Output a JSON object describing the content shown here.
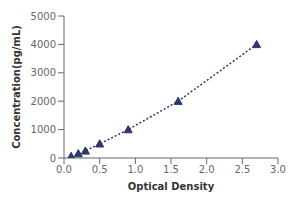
{
  "chart_data": {
    "type": "line",
    "xlabel": "Optical Density",
    "ylabel": "Concentration(pg/mL)",
    "x": [
      0.1,
      0.2,
      0.3,
      0.5,
      0.9,
      1.6,
      2.7
    ],
    "values": [
      62,
      156,
      250,
      500,
      1000,
      2000,
      4000
    ],
    "color": "#2b3a6b",
    "marker": "triangle",
    "line_style": "dotted",
    "xlim": [
      0,
      3
    ],
    "ylim": [
      0,
      5000
    ],
    "xticks": [
      {
        "value": 0,
        "label": "0.0"
      },
      0.5,
      {
        "value": 1,
        "label": "1.0"
      },
      1.5,
      {
        "value": 2,
        "label": "2.0"
      },
      2.5,
      {
        "value": 3,
        "label": "3.0"
      }
    ],
    "yticks": [
      0,
      1000,
      2000,
      3000,
      4000,
      5000
    ],
    "grid": false
  }
}
